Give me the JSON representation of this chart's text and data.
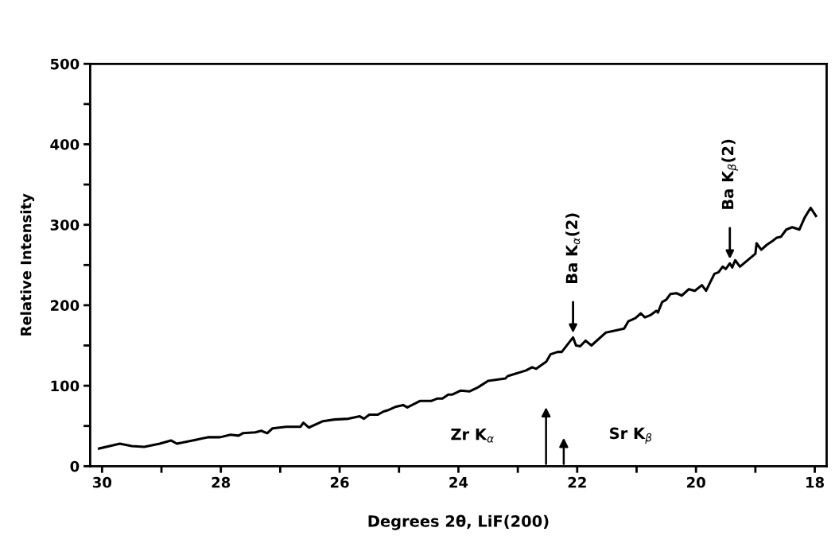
{
  "chart_data": {
    "type": "line",
    "xlabel": "Degrees 2θ, LiF(200)",
    "ylabel": "Relative Intensity",
    "xlim": [
      30.2,
      17.8
    ],
    "ylim": [
      0,
      500
    ],
    "xticks": [
      30,
      {
        "value": 29,
        "label": null
      },
      28,
      {
        "value": 27,
        "label": null
      },
      26,
      {
        "value": 25,
        "label": null
      },
      24,
      {
        "value": 23,
        "label": null
      },
      22,
      {
        "value": 21,
        "label": null
      },
      20,
      {
        "value": 19,
        "label": null
      },
      18
    ],
    "yticks": [
      0,
      {
        "value": 50,
        "label": null
      },
      100,
      {
        "value": 150,
        "label": null
      },
      200,
      {
        "value": 250,
        "label": null
      },
      300,
      {
        "value": 350,
        "label": null
      },
      400,
      {
        "value": 450,
        "label": null
      },
      500
    ],
    "grid": false,
    "legend": false,
    "marker": "none",
    "line_style": "solid",
    "series": [
      {
        "color": "#000000",
        "x": [
          30.05,
          29.7,
          29.5,
          29.29,
          29.03,
          28.84,
          28.74,
          28.41,
          28.22,
          28.01,
          27.84,
          27.7,
          27.63,
          27.42,
          27.32,
          27.22,
          27.13,
          26.9,
          26.66,
          26.61,
          26.52,
          26.28,
          26.09,
          25.85,
          25.66,
          25.59,
          25.5,
          25.36,
          25.26,
          25.17,
          25.05,
          24.93,
          24.86,
          24.65,
          24.46,
          24.36,
          24.27,
          24.17,
          24.1,
          23.96,
          23.81,
          23.67,
          23.5,
          23.21,
          23.17,
          22.86,
          22.76,
          22.69,
          22.52,
          22.45,
          22.33,
          22.26,
          22.07,
          22.02,
          21.95,
          21.86,
          21.76,
          21.52,
          21.33,
          21.21,
          21.14,
          21.02,
          20.93,
          20.86,
          20.76,
          20.67,
          20.64,
          20.57,
          20.5,
          20.43,
          20.33,
          20.24,
          20.12,
          20.02,
          19.9,
          19.83,
          19.69,
          19.62,
          19.55,
          19.5,
          19.43,
          19.39,
          19.34,
          19.26,
          19.0,
          18.98,
          18.9,
          18.81,
          18.71,
          18.64,
          18.57,
          18.48,
          18.38,
          18.26,
          18.17,
          18.07,
          17.98
        ],
        "values": [
          22,
          28,
          25,
          24,
          28,
          32,
          28,
          33,
          36,
          36,
          39,
          38,
          41,
          42,
          44,
          41,
          47,
          49,
          49,
          54,
          48,
          56,
          58,
          59,
          62,
          59,
          64,
          64,
          68,
          70,
          74,
          76,
          73,
          81,
          81,
          84,
          84,
          89,
          89,
          94,
          93,
          98,
          106,
          109,
          112,
          119,
          123,
          121,
          130,
          139,
          142,
          142,
          160,
          150,
          149,
          156,
          150,
          166,
          169,
          171,
          180,
          184,
          190,
          185,
          188,
          193,
          191,
          204,
          207,
          214,
          215,
          212,
          220,
          218,
          225,
          218,
          239,
          241,
          248,
          245,
          252,
          247,
          256,
          248,
          264,
          277,
          269,
          275,
          280,
          284,
          285,
          294,
          297,
          294,
          309,
          321,
          311
        ]
      }
    ],
    "annotations": [
      {
        "text": "Ba K$_{α}$(2)",
        "x": 22.07,
        "y": 160
      },
      {
        "text": "Ba K$_{β}$(2)",
        "x": 19.43,
        "y": 252
      },
      "Zr K$_{α}$",
      "Sr K$_{β}$"
    ]
  }
}
